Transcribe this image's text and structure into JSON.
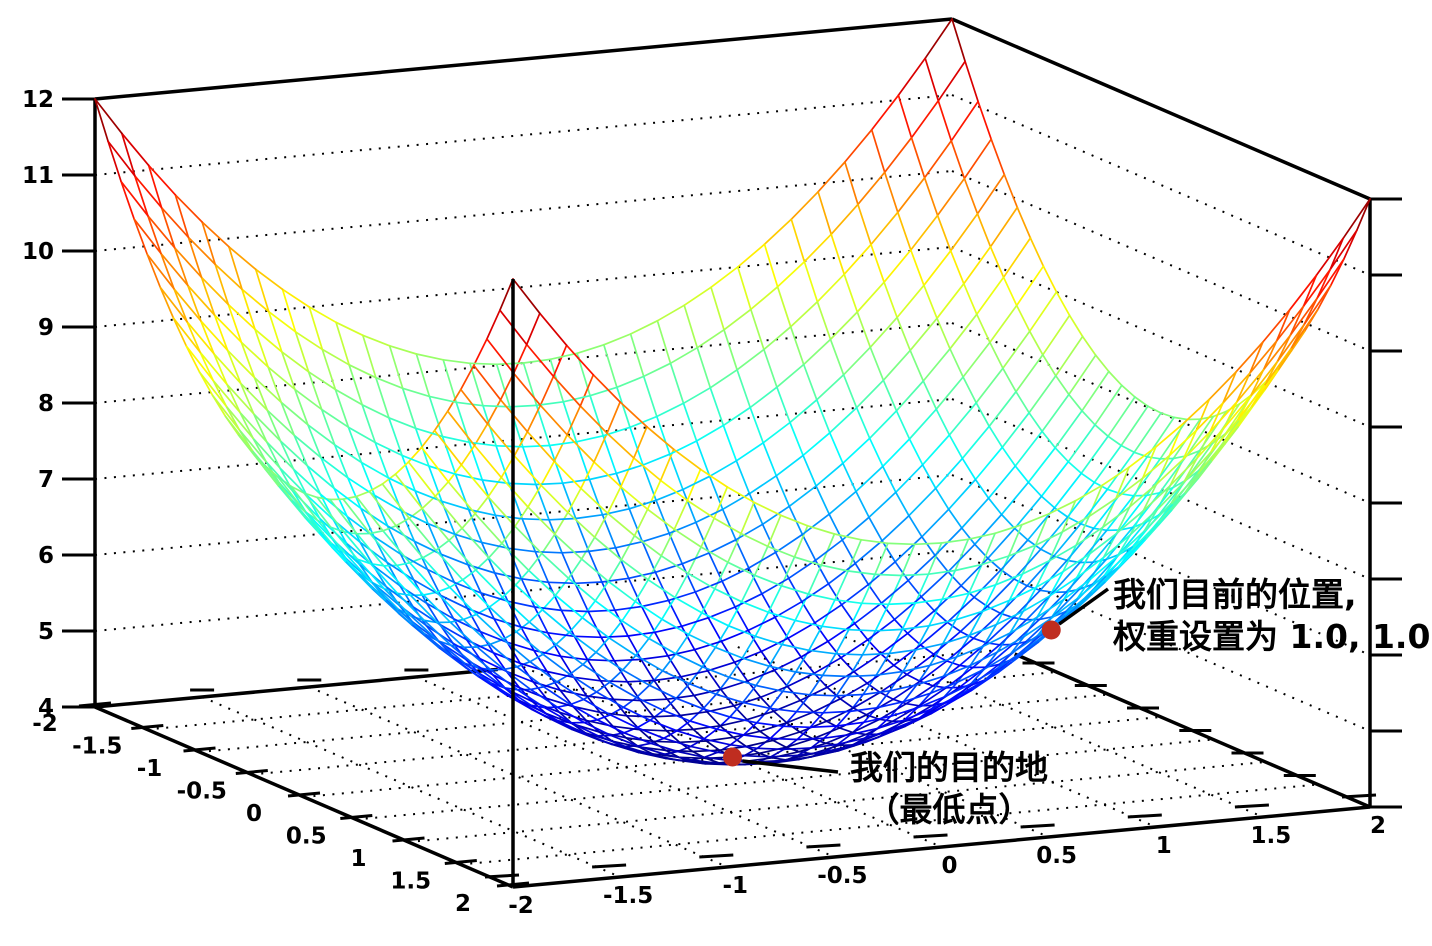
{
  "chart_data": {
    "type": "3d-surface",
    "title": "",
    "function": "z = x^2 + y^2 + 4",
    "x_range": [
      -2,
      2
    ],
    "y_range": [
      -2,
      2
    ],
    "z_range": [
      4,
      12
    ],
    "grid_step": 0.125,
    "colormap": "jet",
    "background_color": "#ffffff",
    "axis_color": "#000000",
    "gridline_style": "dotted",
    "x_ticks": {
      "values": [
        -2,
        -1.5,
        -1,
        -0.5,
        0,
        0.5,
        1,
        1.5,
        2
      ],
      "labels": [
        "-2",
        "-1.5",
        "-1",
        "-0.5",
        "0",
        "0.5",
        "1",
        "1.5",
        "2"
      ]
    },
    "y_ticks": {
      "values": [
        -2,
        -1.5,
        -1,
        -0.5,
        0,
        0.5,
        1,
        1.5,
        2
      ],
      "labels": [
        "-2",
        "-1.5",
        "-1",
        "-0.5",
        "0",
        "0.5",
        "1",
        "1.5",
        "2"
      ]
    },
    "z_ticks": {
      "values": [
        4,
        5,
        6,
        7,
        8,
        9,
        10,
        11,
        12
      ],
      "labels": [
        "4",
        "5",
        "6",
        "7",
        "8",
        "9",
        "10",
        "11",
        "12"
      ]
    },
    "wall_gridlines_z": [
      5,
      6,
      7,
      8,
      9,
      10,
      11
    ],
    "floor_gridline_values": [
      -1.5,
      -1,
      -0.5,
      0,
      0.5,
      1,
      1.5
    ],
    "markers": [
      {
        "id": "current-position",
        "x": 1.0,
        "y": 1.0,
        "z": 6.0,
        "color": "#bf2d20",
        "label": [
          "我们目前的位置,",
          "权重设置为 1.0, 1.0"
        ]
      },
      {
        "id": "destination",
        "x": 0.0,
        "y": 0.0,
        "z": 4.0,
        "color": "#bf2d20",
        "label": [
          "我们的目的地",
          "（最低点）"
        ]
      }
    ]
  }
}
